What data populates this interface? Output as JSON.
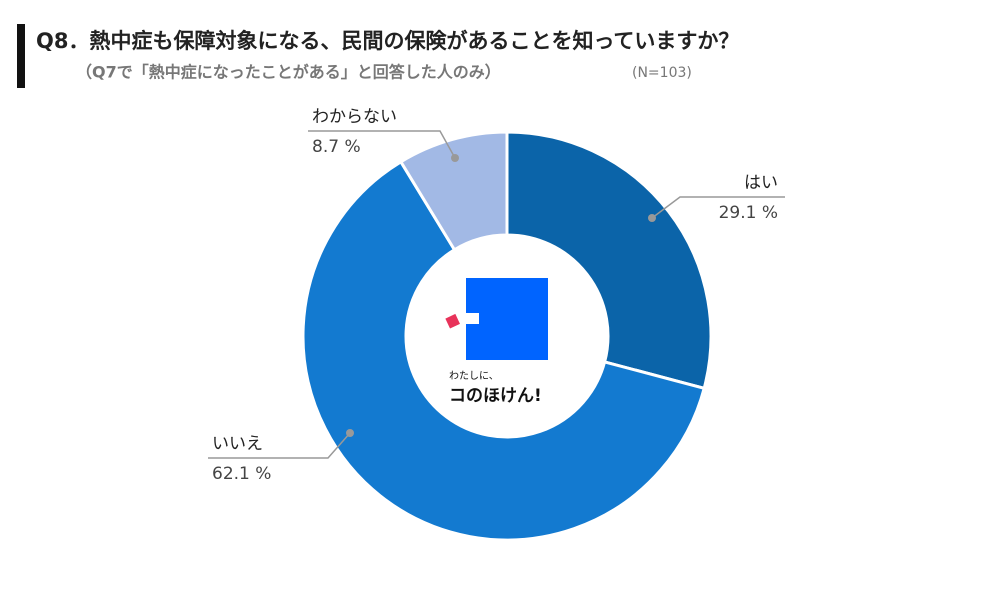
{
  "chart_data": {
    "type": "pie",
    "title": "Q8．熱中症も保障対象になる、民間の保険があることを知っていますか？",
    "subtitle": "（Q7で「熱中症になったことがある」と回答した人のみ）",
    "sample_size": "(N=103)",
    "categories": [
      "はい",
      "いいえ",
      "わからない"
    ],
    "values": [
      29.1,
      62.1,
      8.7
    ],
    "value_labels": [
      "29.1 %",
      "62.1 %",
      "8.7 %"
    ],
    "colors": [
      "#0b64a9",
      "#137ad0",
      "#a2b9e5"
    ],
    "donut": true,
    "center_logo": [
      "わたしに、",
      "コのほけん!"
    ]
  }
}
